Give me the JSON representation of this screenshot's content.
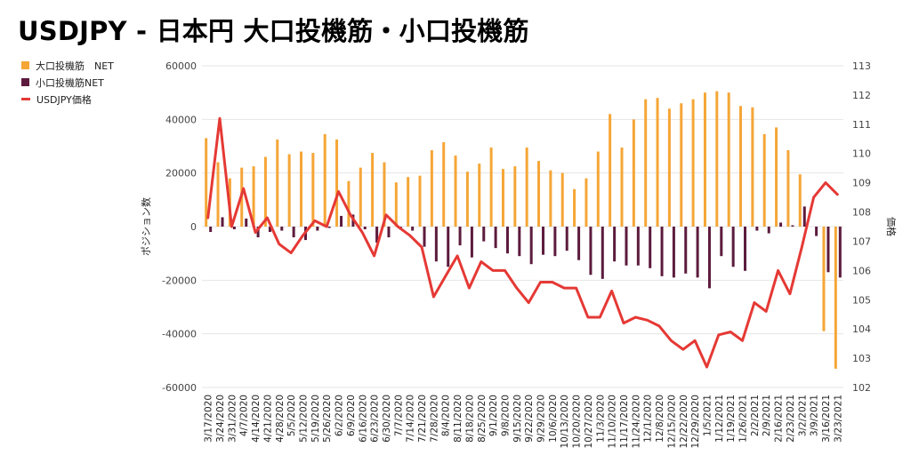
{
  "title": "USDJPY - 日本円 大口投機筋・小口投機筋",
  "colors": {
    "large": "#f5a637",
    "small": "#5c1b3d",
    "price": "#e53935",
    "grid": "#e6e6e6",
    "axis_text": "#444444"
  },
  "legend": [
    {
      "label": "大口投機筋　NET",
      "kind": "bar",
      "color": "#f5a637"
    },
    {
      "label": "小口投機筋NET",
      "kind": "bar",
      "color": "#5c1b3d"
    },
    {
      "label": "USDJPY価格",
      "kind": "line",
      "color": "#e53935"
    }
  ],
  "chart_data": {
    "type": "bar",
    "title": "USDJPY - 日本円 大口投機筋・小口投機筋",
    "ylabel": "ポジション数",
    "y2label": "価格",
    "ylim": [
      -60000,
      60000
    ],
    "y2lim": [
      102,
      113
    ],
    "yticks": [
      -60000,
      -40000,
      -20000,
      0,
      20000,
      40000,
      60000
    ],
    "y2ticks": [
      102,
      103,
      104,
      105,
      106,
      107,
      108,
      109,
      110,
      111,
      112,
      113
    ],
    "grid": true,
    "legend_position": "top-left",
    "categories": [
      "3/17/2020",
      "3/24/2020",
      "3/31/2020",
      "4/7/2020",
      "4/14/2020",
      "4/21/2020",
      "4/28/2020",
      "5/5/2020",
      "5/12/2020",
      "5/19/2020",
      "5/26/2020",
      "6/2/2020",
      "6/9/2020",
      "6/16/2020",
      "6/23/2020",
      "6/30/2020",
      "7/7/2020",
      "7/14/2020",
      "7/21/2020",
      "7/28/2020",
      "8/4/2020",
      "8/11/2020",
      "8/18/2020",
      "8/25/2020",
      "9/1/2020",
      "9/8/2020",
      "9/15/2020",
      "9/22/2020",
      "9/29/2020",
      "10/6/2020",
      "10/13/2020",
      "10/20/2020",
      "10/27/2020",
      "11/3/2020",
      "11/10/2020",
      "11/17/2020",
      "11/24/2020",
      "12/1/2020",
      "12/8/2020",
      "12/15/2020",
      "12/22/2020",
      "12/29/2020",
      "1/5/2021",
      "1/12/2021",
      "1/19/2021",
      "1/26/2021",
      "2/2/2021",
      "2/9/2021",
      "2/16/2021",
      "2/23/2021",
      "3/2/2021",
      "3/9/2021",
      "3/16/2021",
      "3/23/2021"
    ],
    "series": [
      {
        "name": "大口投機筋　NET",
        "kind": "bar",
        "axis": "left",
        "values": [
          33000,
          24000,
          18000,
          22000,
          22500,
          26000,
          32500,
          27000,
          28000,
          27500,
          34500,
          32500,
          17000,
          22000,
          27500,
          24000,
          16500,
          18500,
          19000,
          28500,
          31500,
          26500,
          20500,
          23500,
          29500,
          21500,
          22500,
          29500,
          24500,
          21000,
          20000,
          14000,
          18000,
          28000,
          42000,
          29500,
          40000,
          47500,
          48000,
          44000,
          46000,
          47500,
          50000,
          50500,
          50000,
          45000,
          44500,
          34500,
          37000,
          28500,
          19500,
          0,
          -39000,
          -53000
        ]
      },
      {
        "name": "小口投機筋NET",
        "kind": "bar",
        "axis": "left",
        "values": [
          -2000,
          3500,
          -1000,
          3000,
          -4000,
          -2000,
          -1500,
          -4000,
          -5000,
          -1500,
          -500,
          4000,
          4500,
          -1000,
          -6000,
          -4000,
          -1000,
          -1500,
          -7500,
          -13000,
          -15000,
          -7000,
          -11500,
          -5500,
          -8000,
          -10000,
          -11000,
          -14000,
          -10500,
          -11000,
          -9000,
          -12500,
          -18000,
          -19500,
          -13000,
          -14500,
          -14500,
          -15500,
          -18500,
          -19000,
          -17500,
          -19000,
          -23000,
          -11000,
          -15000,
          -16500,
          -1500,
          -2500,
          1500,
          500,
          7500,
          -3500,
          -17000,
          -19000
        ]
      },
      {
        "name": "USDJPY価格",
        "kind": "line",
        "axis": "right",
        "values": [
          107.8,
          111.2,
          107.5,
          108.8,
          107.3,
          107.8,
          106.9,
          106.6,
          107.2,
          107.7,
          107.5,
          108.7,
          107.9,
          107.3,
          106.5,
          107.9,
          107.5,
          107.2,
          106.8,
          105.1,
          105.8,
          106.5,
          105.4,
          106.3,
          106.0,
          106.0,
          105.4,
          104.9,
          105.6,
          105.6,
          105.4,
          105.4,
          104.4,
          104.4,
          105.3,
          104.2,
          104.4,
          104.3,
          104.1,
          103.6,
          103.3,
          103.6,
          102.7,
          103.8,
          103.9,
          103.6,
          104.9,
          104.6,
          106.0,
          105.2,
          106.8,
          108.5,
          109.0,
          108.6
        ]
      }
    ]
  }
}
